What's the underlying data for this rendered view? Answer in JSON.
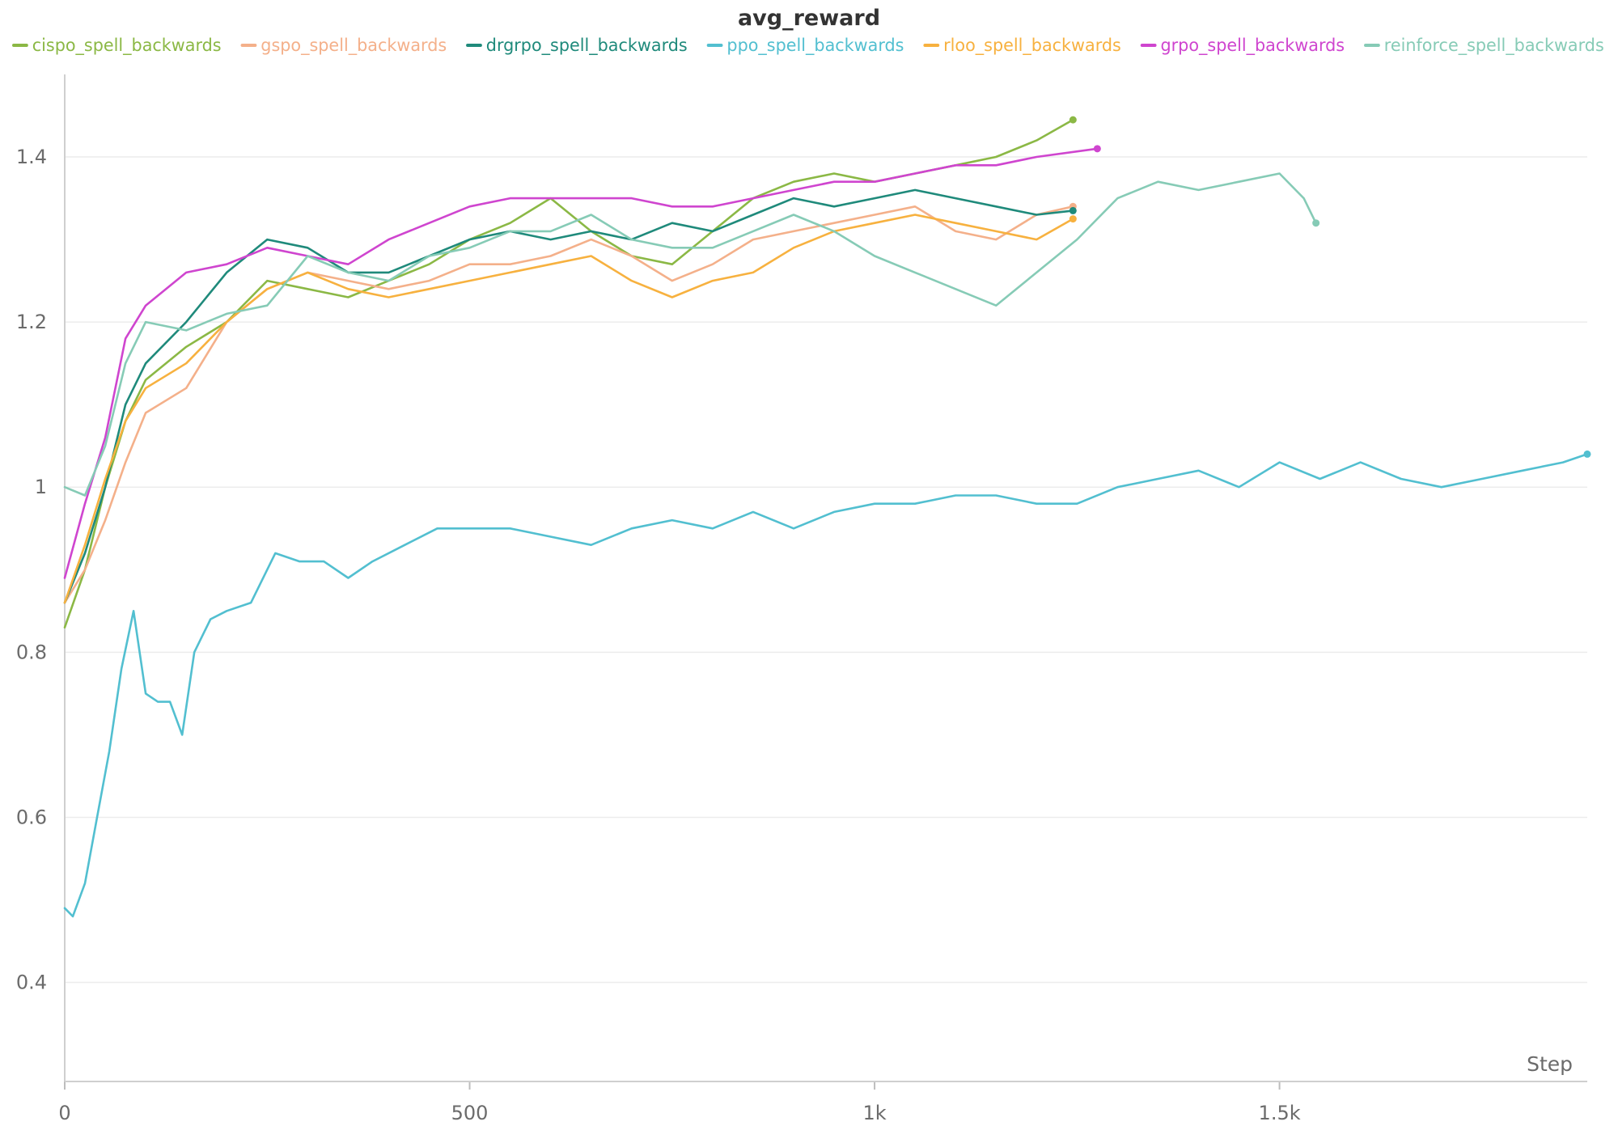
{
  "chart_data": {
    "type": "line",
    "title": "avg_reward",
    "xlabel": "Step",
    "ylabel": "",
    "xlim": [
      0,
      1880
    ],
    "ylim": [
      0.28,
      1.5
    ],
    "x_ticks": [
      0,
      500,
      1000,
      1500
    ],
    "x_tick_labels": [
      "0",
      "500",
      "1k",
      "1.5k"
    ],
    "y_ticks": [
      0.4,
      0.6,
      0.8,
      1.0,
      1.2,
      1.4
    ],
    "y_tick_labels": [
      "0.4",
      "0.6",
      "0.8",
      "1",
      "1.2",
      "1.4"
    ],
    "grid": true,
    "legend_position": "top",
    "series": [
      {
        "name": "cispo_spell_backwards",
        "color": "#8bb845",
        "x": [
          0,
          25,
          50,
          75,
          100,
          150,
          200,
          250,
          300,
          350,
          400,
          450,
          500,
          550,
          600,
          650,
          700,
          750,
          800,
          850,
          900,
          950,
          1000,
          1050,
          1100,
          1150,
          1200,
          1245
        ],
        "y": [
          0.83,
          0.9,
          1.0,
          1.08,
          1.13,
          1.17,
          1.2,
          1.25,
          1.24,
          1.23,
          1.25,
          1.27,
          1.3,
          1.32,
          1.35,
          1.31,
          1.28,
          1.27,
          1.31,
          1.35,
          1.37,
          1.38,
          1.37,
          1.38,
          1.39,
          1.4,
          1.42,
          1.445
        ]
      },
      {
        "name": "gspo_spell_backwards",
        "color": "#f4b08a",
        "x": [
          0,
          25,
          50,
          75,
          100,
          150,
          200,
          250,
          300,
          350,
          400,
          450,
          500,
          550,
          600,
          650,
          700,
          750,
          800,
          850,
          900,
          950,
          1000,
          1050,
          1100,
          1150,
          1200,
          1245
        ],
        "y": [
          0.86,
          0.9,
          0.96,
          1.03,
          1.09,
          1.12,
          1.2,
          1.24,
          1.26,
          1.25,
          1.24,
          1.25,
          1.27,
          1.27,
          1.28,
          1.3,
          1.28,
          1.25,
          1.27,
          1.3,
          1.31,
          1.32,
          1.33,
          1.34,
          1.31,
          1.3,
          1.33,
          1.34
        ]
      },
      {
        "name": "drgrpo_spell_backwards",
        "color": "#1f8a7b",
        "x": [
          0,
          25,
          50,
          75,
          100,
          150,
          200,
          250,
          300,
          350,
          400,
          450,
          500,
          550,
          600,
          650,
          700,
          750,
          800,
          850,
          900,
          950,
          1000,
          1050,
          1100,
          1150,
          1200,
          1245
        ],
        "y": [
          0.86,
          0.92,
          1.0,
          1.1,
          1.15,
          1.2,
          1.26,
          1.3,
          1.29,
          1.26,
          1.26,
          1.28,
          1.3,
          1.31,
          1.3,
          1.31,
          1.3,
          1.32,
          1.31,
          1.33,
          1.35,
          1.34,
          1.35,
          1.36,
          1.35,
          1.34,
          1.33,
          1.335
        ]
      },
      {
        "name": "ppo_spell_backwards",
        "color": "#52bfd0",
        "x": [
          0,
          10,
          25,
          40,
          55,
          70,
          85,
          100,
          115,
          130,
          145,
          160,
          180,
          200,
          230,
          260,
          290,
          320,
          350,
          380,
          420,
          460,
          500,
          550,
          600,
          650,
          700,
          750,
          800,
          850,
          900,
          950,
          1000,
          1050,
          1100,
          1150,
          1200,
          1250,
          1300,
          1350,
          1400,
          1450,
          1500,
          1550,
          1600,
          1650,
          1700,
          1750,
          1800,
          1850,
          1880
        ],
        "y": [
          0.49,
          0.48,
          0.52,
          0.6,
          0.68,
          0.78,
          0.85,
          0.75,
          0.74,
          0.74,
          0.7,
          0.8,
          0.84,
          0.85,
          0.86,
          0.92,
          0.91,
          0.91,
          0.89,
          0.91,
          0.93,
          0.95,
          0.95,
          0.95,
          0.94,
          0.93,
          0.95,
          0.96,
          0.95,
          0.97,
          0.95,
          0.97,
          0.98,
          0.98,
          0.99,
          0.99,
          0.98,
          0.98,
          1.0,
          1.01,
          1.02,
          1.0,
          1.03,
          1.01,
          1.03,
          1.01,
          1.0,
          1.01,
          1.02,
          1.03,
          1.04
        ]
      },
      {
        "name": "rloo_spell_backwards",
        "color": "#f7b13f",
        "x": [
          0,
          25,
          50,
          75,
          100,
          150,
          200,
          250,
          300,
          350,
          400,
          450,
          500,
          550,
          600,
          650,
          700,
          750,
          800,
          850,
          900,
          950,
          1000,
          1050,
          1100,
          1150,
          1200,
          1245
        ],
        "y": [
          0.86,
          0.93,
          1.01,
          1.08,
          1.12,
          1.15,
          1.2,
          1.24,
          1.26,
          1.24,
          1.23,
          1.24,
          1.25,
          1.26,
          1.27,
          1.28,
          1.25,
          1.23,
          1.25,
          1.26,
          1.29,
          1.31,
          1.32,
          1.33,
          1.32,
          1.31,
          1.3,
          1.325
        ]
      },
      {
        "name": "grpo_spell_backwards",
        "color": "#cf45cf",
        "x": [
          0,
          25,
          50,
          75,
          100,
          150,
          200,
          250,
          300,
          350,
          400,
          450,
          500,
          550,
          600,
          650,
          700,
          750,
          800,
          850,
          900,
          950,
          1000,
          1050,
          1100,
          1150,
          1200,
          1275
        ],
        "y": [
          0.89,
          0.98,
          1.06,
          1.18,
          1.22,
          1.26,
          1.27,
          1.29,
          1.28,
          1.27,
          1.3,
          1.32,
          1.34,
          1.35,
          1.35,
          1.35,
          1.35,
          1.34,
          1.34,
          1.35,
          1.36,
          1.37,
          1.37,
          1.38,
          1.39,
          1.39,
          1.4,
          1.41
        ]
      },
      {
        "name": "reinforce_spell_backwards",
        "color": "#86cbb6",
        "x": [
          0,
          25,
          50,
          75,
          100,
          150,
          200,
          250,
          300,
          350,
          400,
          450,
          500,
          550,
          600,
          650,
          700,
          750,
          800,
          850,
          900,
          950,
          1000,
          1050,
          1100,
          1150,
          1200,
          1250,
          1300,
          1350,
          1400,
          1450,
          1500,
          1530,
          1545
        ],
        "y": [
          1.0,
          0.99,
          1.05,
          1.15,
          1.2,
          1.19,
          1.21,
          1.22,
          1.28,
          1.26,
          1.25,
          1.28,
          1.29,
          1.31,
          1.31,
          1.33,
          1.3,
          1.29,
          1.29,
          1.31,
          1.33,
          1.31,
          1.28,
          1.26,
          1.24,
          1.22,
          1.26,
          1.3,
          1.35,
          1.37,
          1.36,
          1.37,
          1.38,
          1.35,
          1.32
        ]
      }
    ]
  }
}
